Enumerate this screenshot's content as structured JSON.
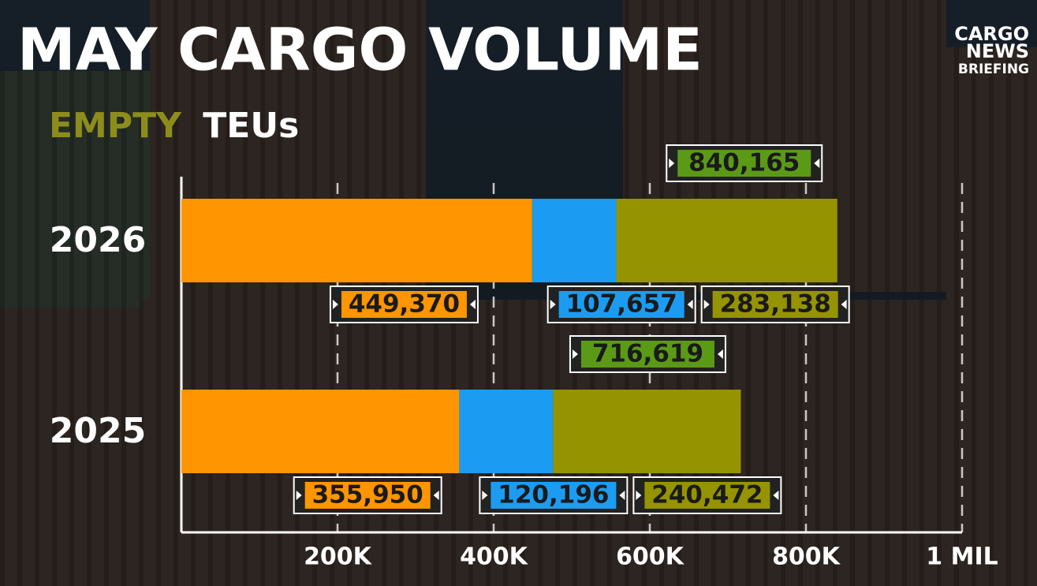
{
  "chart_data": {
    "type": "stacked-barh",
    "title": "MAY CARGO VOLUME",
    "subtitle": [
      "EMPTY",
      "TEUs"
    ],
    "subtitle_colors": [
      "#8e8d1c",
      "#ffffff"
    ],
    "logo": [
      "CARGO",
      "NEWS",
      "BRIEFING"
    ],
    "categories": [
      "2026",
      "2025"
    ],
    "series": [
      {
        "color": "#ff9500",
        "values": [
          449370,
          355950
        ],
        "value_labels": [
          "449,370",
          "355,950"
        ]
      },
      {
        "color": "#1b9cf2",
        "values": [
          107657,
          120196
        ],
        "value_labels": [
          "107,657",
          "120,196"
        ]
      },
      {
        "color": "#959400",
        "values": [
          283138,
          240472
        ],
        "value_labels": [
          "283,138",
          "240,472"
        ]
      }
    ],
    "totals": [
      840165,
      716619
    ],
    "total_labels": [
      "840,165",
      "716,619"
    ],
    "total_color": "#5b9a17",
    "xlim": [
      0,
      1000000
    ],
    "xticks": [
      {
        "value": 200000,
        "label": "200K"
      },
      {
        "value": 400000,
        "label": "400K"
      },
      {
        "value": 600000,
        "label": "600K"
      },
      {
        "value": 800000,
        "label": "800K"
      },
      {
        "value": 1000000,
        "label": "1 MIL"
      }
    ],
    "grid": true
  }
}
